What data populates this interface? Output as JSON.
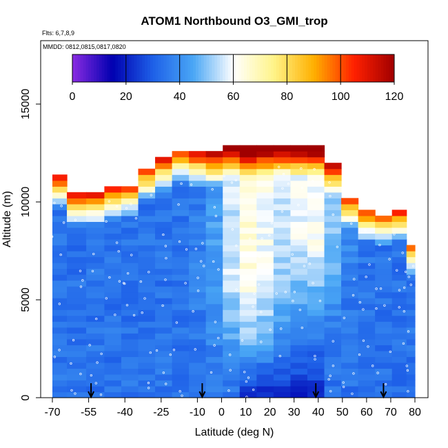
{
  "chart_data": {
    "type": "heatmap",
    "title": "ATOM1 Northbound O3_GMI_trop",
    "notes": {
      "flights": "Flts: 6,7,8,9",
      "dates": "MMDD: 0812,0815,0817,0820"
    },
    "xlabel": "Latitude (deg N)",
    "ylabel": "Altitude (m)",
    "xlim": [
      -70,
      80
    ],
    "ylim": [
      0,
      18000
    ],
    "x_ticks": [
      -70,
      -55,
      -40,
      -25,
      -10,
      0,
      10,
      20,
      30,
      40,
      50,
      60,
      70,
      80
    ],
    "x_tick_labels": [
      "-70",
      "-55",
      "-40",
      "-25",
      "-10",
      "0",
      "10",
      "20",
      "30",
      "40",
      "50",
      "60",
      "70",
      "80"
    ],
    "y_ticks": [
      0,
      5000,
      10000,
      15000
    ],
    "y_tick_labels": [
      "0",
      "5000",
      "10000",
      "15000"
    ],
    "colorbar": {
      "min": 0,
      "max": 120,
      "ticks": [
        0,
        20,
        40,
        60,
        80,
        100,
        120
      ],
      "tick_labels": [
        "0",
        "20",
        "40",
        "60",
        "80",
        "100",
        "120"
      ],
      "colors": [
        "#8a2be2",
        "#0000b0",
        "#1e60e8",
        "#49a6f5",
        "#ffffff",
        "#fff48a",
        "#ffb000",
        "#ff2000",
        "#a00000"
      ]
    },
    "flight_arrows_lat": [
      -54,
      -8,
      39,
      67
    ],
    "profiles": [
      {
        "lat": -68,
        "top": 11200
      },
      {
        "lat": -60,
        "top": 10300
      },
      {
        "lat": -52,
        "top": 10300
      },
      {
        "lat": -45,
        "top": 10600
      },
      {
        "lat": -38,
        "top": 10800
      },
      {
        "lat": -31,
        "top": 11600
      },
      {
        "lat": -24,
        "top": 12100
      },
      {
        "lat": -17,
        "top": 12600
      },
      {
        "lat": -10,
        "top": 12400
      },
      {
        "lat": -3,
        "top": 12400
      },
      {
        "lat": 4,
        "top": 12800
      },
      {
        "lat": 11,
        "top": 12800
      },
      {
        "lat": 18,
        "top": 12800
      },
      {
        "lat": 25,
        "top": 12800
      },
      {
        "lat": 32,
        "top": 12800
      },
      {
        "lat": 39,
        "top": 12800
      },
      {
        "lat": 46,
        "top": 12000
      },
      {
        "lat": 53,
        "top": 10200
      },
      {
        "lat": 60,
        "top": 9500
      },
      {
        "lat": 67,
        "top": 9300
      },
      {
        "lat": 74,
        "top": 9500
      },
      {
        "lat": 79,
        "top": 7800
      }
    ]
  }
}
